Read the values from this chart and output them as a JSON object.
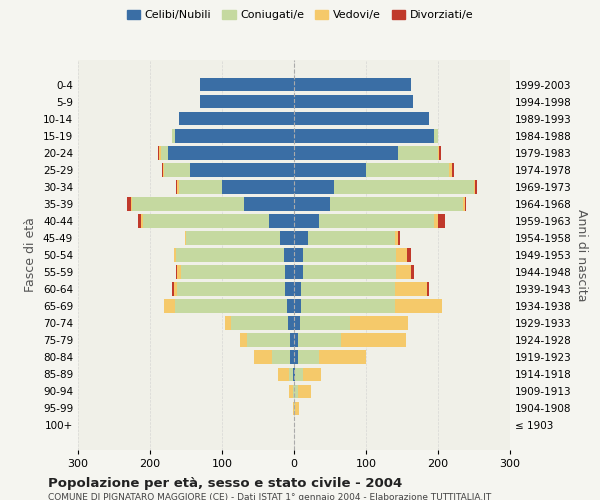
{
  "age_groups": [
    "100+",
    "95-99",
    "90-94",
    "85-89",
    "80-84",
    "75-79",
    "70-74",
    "65-69",
    "60-64",
    "55-59",
    "50-54",
    "45-49",
    "40-44",
    "35-39",
    "30-34",
    "25-29",
    "20-24",
    "15-19",
    "10-14",
    "5-9",
    "0-4"
  ],
  "birth_years": [
    "≤ 1903",
    "1904-1908",
    "1909-1913",
    "1914-1918",
    "1919-1923",
    "1924-1928",
    "1929-1933",
    "1934-1938",
    "1939-1943",
    "1944-1948",
    "1949-1953",
    "1954-1958",
    "1959-1963",
    "1964-1968",
    "1969-1973",
    "1974-1978",
    "1979-1983",
    "1984-1988",
    "1989-1993",
    "1994-1998",
    "1999-2003"
  ],
  "colors": {
    "celibe": "#3a6ea5",
    "coniugato": "#c5d9a0",
    "vedovo": "#f5c96a",
    "divorziato": "#c0392b"
  },
  "males": {
    "celibe": [
      0,
      0,
      0,
      2,
      5,
      5,
      8,
      10,
      12,
      12,
      14,
      20,
      35,
      70,
      100,
      145,
      175,
      165,
      160,
      130,
      130
    ],
    "coniugato": [
      0,
      0,
      2,
      5,
      25,
      60,
      80,
      155,
      150,
      145,
      150,
      130,
      175,
      155,
      60,
      35,
      10,
      5,
      0,
      0,
      0
    ],
    "vedovo": [
      0,
      2,
      5,
      15,
      25,
      10,
      8,
      15,
      5,
      5,
      2,
      2,
      2,
      2,
      2,
      2,
      2,
      0,
      0,
      0,
      0
    ],
    "divorziato": [
      0,
      0,
      0,
      0,
      0,
      0,
      0,
      0,
      2,
      2,
      0,
      0,
      5,
      5,
      2,
      2,
      2,
      0,
      0,
      0,
      0
    ]
  },
  "females": {
    "nubile": [
      0,
      0,
      0,
      2,
      5,
      5,
      8,
      10,
      10,
      12,
      12,
      20,
      35,
      50,
      55,
      100,
      145,
      195,
      188,
      165,
      163
    ],
    "coniugata": [
      0,
      2,
      5,
      10,
      30,
      60,
      70,
      130,
      130,
      130,
      130,
      120,
      160,
      185,
      195,
      115,
      55,
      5,
      0,
      0,
      0
    ],
    "vedova": [
      0,
      5,
      18,
      25,
      65,
      90,
      80,
      65,
      45,
      20,
      15,
      5,
      5,
      2,
      2,
      5,
      2,
      0,
      0,
      0,
      0
    ],
    "divorziata": [
      0,
      0,
      0,
      0,
      0,
      0,
      0,
      0,
      2,
      5,
      5,
      2,
      10,
      2,
      2,
      2,
      2,
      0,
      0,
      0,
      0
    ]
  },
  "title": "Popolazione per età, sesso e stato civile - 2004",
  "subtitle": "COMUNE DI PIGNATARO MAGGIORE (CE) - Dati ISTAT 1° gennaio 2004 - Elaborazione TUTTITALIA.IT",
  "ylabel_left": "Fasce di età",
  "ylabel_right": "Anni di nascita",
  "xlim": 300,
  "legend_labels": [
    "Celibi/Nubili",
    "Coniugati/e",
    "Vedovi/e",
    "Divorziati/e"
  ],
  "bg_color": "#f5f5f0",
  "plot_bg": "#f0f0e8"
}
